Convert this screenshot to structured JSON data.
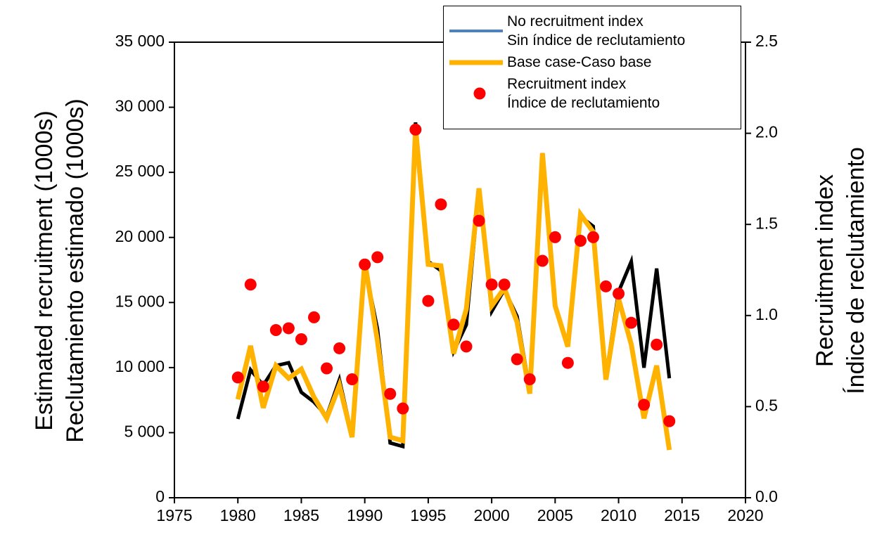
{
  "chart_data": {
    "type": "line",
    "ylabel": "Estimated recruitment (1000s)\nReclutamiento estimado (1000s)",
    "y2label": "Recruitment index\nÍndice de reclutamiento",
    "x": [
      1980,
      1981,
      1982,
      1983,
      1984,
      1985,
      1986,
      1987,
      1988,
      1989,
      1990,
      1991,
      1992,
      1993,
      1994,
      1995,
      1996,
      1997,
      1998,
      1999,
      2000,
      2001,
      2002,
      2003,
      2004,
      2005,
      2006,
      2007,
      2008,
      2009,
      2010,
      2011,
      2012,
      2013,
      2014
    ],
    "xlim": [
      1975,
      2020
    ],
    "xticks": [
      1975,
      1980,
      1985,
      1990,
      1995,
      2000,
      2005,
      2010,
      2015,
      2020
    ],
    "ylim": [
      0,
      35000
    ],
    "yticks": [
      0,
      {
        "value": 5000,
        "label": "5 000"
      },
      {
        "value": 10000,
        "label": "10 000"
      },
      {
        "value": 15000,
        "label": "15 000"
      },
      {
        "value": 20000,
        "label": "20 000"
      },
      {
        "value": 25000,
        "label": "25 000"
      },
      {
        "value": 30000,
        "label": "30 000"
      },
      {
        "value": 35000,
        "label": "35 000"
      }
    ],
    "y2lim": [
      0,
      2.5
    ],
    "y2ticks": [
      {
        "value": 0,
        "label": "0.0"
      },
      0.5,
      {
        "value": 1,
        "label": "1.0"
      },
      1.5,
      {
        "value": 2,
        "label": "2.0"
      },
      2.5
    ],
    "series": [
      {
        "name": "No recruitment index\nSin índice de reclutamiento",
        "color": "#000000",
        "legend_color": "#4f81bd",
        "style": "line",
        "values": [
          6050,
          9830,
          8640,
          10150,
          10370,
          8100,
          7350,
          6270,
          9070,
          4750,
          17820,
          12960,
          4210,
          3940,
          28840,
          18150,
          17450,
          11230,
          13290,
          23660,
          14310,
          15990,
          13940,
          8260,
          26470,
          14750,
          11780,
          21600,
          20850,
          9290,
          15830,
          18150,
          9990,
          17610,
          9180
        ]
      },
      {
        "name": "Base case-Caso base",
        "color": "#ffb300",
        "style": "line",
        "values": [
          7560,
          11670,
          6910,
          10150,
          9180,
          9880,
          7720,
          6100,
          8640,
          4650,
          18150,
          12040,
          4650,
          4380,
          28410,
          17930,
          17820,
          11070,
          14480,
          23770,
          14750,
          16100,
          13500,
          7990,
          26470,
          14750,
          11610,
          21770,
          20420,
          9070,
          15290,
          11780,
          6100,
          10150,
          3670
        ]
      },
      {
        "name": "Recruitment index\nÍndice de reclutamiento",
        "color": "#ff0000",
        "style": "points",
        "axis": "y2",
        "values": [
          0.66,
          1.17,
          0.61,
          0.92,
          0.93,
          0.87,
          0.99,
          0.71,
          0.82,
          0.65,
          1.28,
          1.32,
          0.57,
          0.49,
          2.02,
          1.08,
          1.61,
          0.95,
          0.83,
          1.52,
          1.17,
          1.17,
          0.76,
          0.65,
          1.3,
          1.43,
          0.74,
          1.41,
          1.43,
          1.16,
          1.12,
          0.96,
          0.51,
          0.84,
          0.42
        ]
      }
    ]
  }
}
